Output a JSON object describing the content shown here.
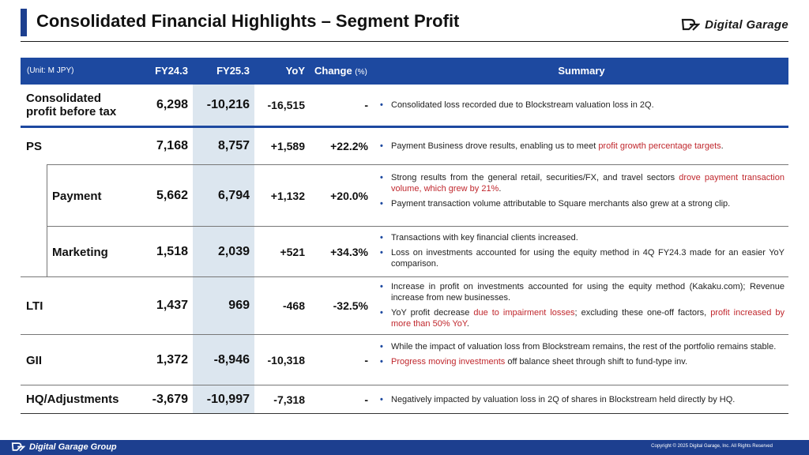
{
  "header": {
    "title": "Consolidated Financial Highlights – Segment Profit",
    "logo_text": "Digital Garage"
  },
  "table": {
    "unit": "(Unit: M JPY)",
    "columns": {
      "fy24": "FY24.3",
      "fy25": "FY25.3",
      "yoy": "YoY",
      "change": "Change",
      "change_unit": "(%)",
      "summary": "Summary"
    },
    "rows": [
      {
        "label_1": "Consolidated",
        "label_2": "profit before tax",
        "fy24": "6,298",
        "fy25": "-10,216",
        "yoy": "-16,515",
        "change": "-",
        "b1": [
          {
            "t": "Consolidated loss recorded due to Blockstream valuation loss in 2Q."
          }
        ]
      },
      {
        "label": "PS",
        "fy24": "7,168",
        "fy25": "8,757",
        "yoy": "+1,589",
        "change": "+22.2%",
        "b1": [
          {
            "t": "Payment Business drove results, enabling us to meet "
          },
          {
            "t": "profit growth percentage targets",
            "red": true
          },
          {
            "t": "."
          }
        ]
      },
      {
        "label": "Payment",
        "fy24": "5,662",
        "fy25": "6,794",
        "yoy": "+1,132",
        "change": "+20.0%",
        "b1": [
          {
            "t": "Strong results from the general retail, securities/FX, and travel sectors "
          },
          {
            "t": "drove payment transaction volume, which grew by 21%",
            "red": true
          },
          {
            "t": "."
          }
        ],
        "b2": [
          {
            "t": "Payment transaction volume attributable to Square merchants also grew at a strong clip."
          }
        ]
      },
      {
        "label": "Marketing",
        "fy24": "1,518",
        "fy25": "2,039",
        "yoy": "+521",
        "change": "+34.3%",
        "b1": [
          {
            "t": "Transactions with key financial clients increased."
          }
        ],
        "b2": [
          {
            "t": "Loss on investments accounted for using the equity method in 4Q FY24.3 made for an easier YoY comparison."
          }
        ]
      },
      {
        "label": "LTI",
        "fy24": "1,437",
        "fy25": "969",
        "yoy": "-468",
        "change": "-32.5%",
        "b1": [
          {
            "t": "Increase in profit on investments accounted for using the equity method (Kakaku.com); Revenue increase from new businesses."
          }
        ],
        "b2": [
          {
            "t": "YoY profit decrease "
          },
          {
            "t": "due to impairment losses",
            "red": true
          },
          {
            "t": "; excluding these one-off factors, "
          },
          {
            "t": "profit increased by more than 50% YoY",
            "red": true
          },
          {
            "t": "."
          }
        ]
      },
      {
        "label": "GII",
        "fy24": "1,372",
        "fy25": "-8,946",
        "yoy": "-10,318",
        "change": "-",
        "b1": [
          {
            "t": "While the impact of valuation loss from Blockstream remains, the rest of the portfolio remains stable."
          }
        ],
        "b2": [
          {
            "t": "Progress moving investments",
            "red": true
          },
          {
            "t": " off balance sheet through shift to fund-type inv."
          }
        ]
      },
      {
        "label": "HQ/Adjustments",
        "fy24": "-3,679",
        "fy25": "-10,997",
        "yoy": "-7,318",
        "change": "-",
        "b1": [
          {
            "t": "Negatively impacted by valuation loss in 2Q of shares in Blockstream held directly by HQ."
          }
        ]
      }
    ]
  },
  "footer": {
    "logo_text": "Digital Garage Group",
    "copyright": "Copyright © 2025 Digital Garage, Inc. All Rights Reserved"
  }
}
